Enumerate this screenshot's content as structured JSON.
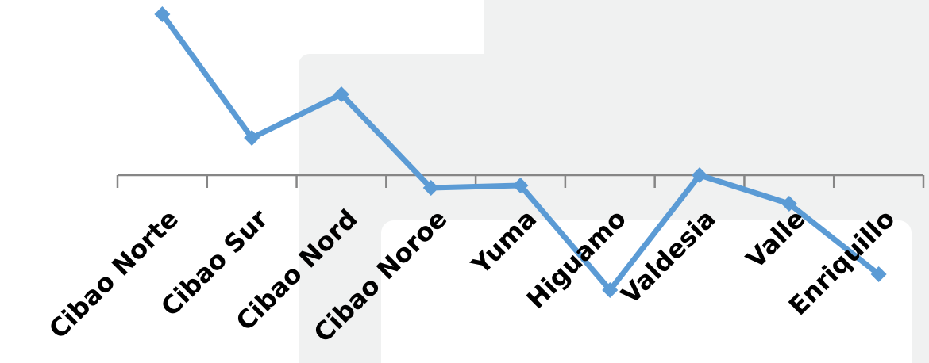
{
  "chart_data": {
    "type": "line",
    "title": "",
    "xlabel": "",
    "ylabel": "",
    "categories": [
      "Cibao Norte",
      "Cibao Sur",
      "Cibao Nord",
      "Cibao Noroe",
      "Yuma",
      "Higuamo",
      "Valdesia",
      "Valle",
      "Enriquillo"
    ],
    "series": [
      {
        "values": [
          2.03,
          0.47,
          1.02,
          -0.16,
          -0.13,
          -1.45,
          0.0,
          -0.36,
          -1.25
        ]
      }
    ],
    "ylim": [
      -2.2,
      2.2
    ],
    "grid": false,
    "legend": "none",
    "colors": {
      "line": "#5b9bd5",
      "axis": "#868686",
      "panel": "#f0f1f1"
    }
  }
}
